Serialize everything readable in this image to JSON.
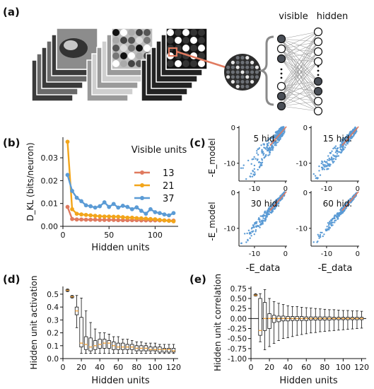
{
  "panels": {
    "a": {
      "label": "(a)",
      "visible_label": "visible",
      "hidden_label": "hidden",
      "visible_states": [
        1,
        1,
        0,
        1,
        0,
        1,
        1,
        0
      ],
      "hidden_states": [
        0,
        0,
        0,
        0,
        0,
        1,
        0,
        1,
        0
      ]
    },
    "b": {
      "label": "(b)"
    },
    "c": {
      "label": "(c)"
    },
    "d": {
      "label": "(d)"
    },
    "e": {
      "label": "(e)"
    }
  },
  "colors": {
    "red": "#e07a5f",
    "orange": "#f2a51a",
    "blue": "#5b9bd5",
    "box_median": "#f2a541",
    "text": "#111111",
    "grid_lines": "#9a9a9a",
    "node_dark": "#4a4f57",
    "node_light": "#ffffff"
  },
  "chart_data": [
    {
      "panel": "b",
      "type": "line",
      "xlabel": "Hidden units",
      "ylabel": "D_KL (bits/neuron)",
      "xlim": [
        0,
        125
      ],
      "ylim": [
        0,
        0.039
      ],
      "xticks": [
        0,
        50,
        100
      ],
      "yticks": [
        0.0,
        0.01,
        0.02,
        0.03
      ],
      "ytick_labels": [
        "0.00",
        "0.01",
        "0.02",
        "0.03"
      ],
      "legend_title": "Visible units",
      "legend_position": "right",
      "x": [
        5,
        10,
        15,
        20,
        25,
        30,
        35,
        40,
        45,
        50,
        55,
        60,
        65,
        70,
        75,
        80,
        85,
        90,
        95,
        100,
        105,
        110,
        115,
        120
      ],
      "series": [
        {
          "name": "13",
          "color": "#e07a5f",
          "values": [
            0.0085,
            0.0032,
            0.003,
            0.003,
            0.0029,
            0.0029,
            0.0029,
            0.0028,
            0.0028,
            0.0028,
            0.0028,
            0.0027,
            0.0027,
            0.0027,
            0.0027,
            0.0027,
            0.0026,
            0.0026,
            0.0026,
            0.0026,
            0.0026,
            0.0026,
            0.0025,
            0.0025
          ]
        },
        {
          "name": "21",
          "color": "#f2a51a",
          "values": [
            0.037,
            0.0075,
            0.0055,
            0.0052,
            0.005,
            0.0048,
            0.0046,
            0.0044,
            0.0043,
            0.0043,
            0.0042,
            0.0042,
            0.004,
            0.0038,
            0.0038,
            0.0036,
            0.0035,
            0.0034,
            0.0032,
            0.0031,
            0.0028,
            0.0026,
            0.0024,
            0.0022
          ]
        },
        {
          "name": "37",
          "color": "#5b9bd5",
          "values": [
            0.0225,
            0.0155,
            0.0125,
            0.011,
            0.0092,
            0.0088,
            0.0082,
            0.0088,
            0.0105,
            0.0085,
            0.0098,
            0.0082,
            0.009,
            0.0085,
            0.0075,
            0.0083,
            0.0068,
            0.0055,
            0.0075,
            0.0062,
            0.0058,
            0.0052,
            0.0048,
            0.0058
          ]
        }
      ]
    },
    {
      "panel": "c",
      "type": "scatter",
      "xlabel": "-E_data",
      "ylabel": "-E_model",
      "xlim": [
        -15,
        0.5
      ],
      "ylim": [
        -15,
        0.5
      ],
      "xticks": [
        -10,
        0
      ],
      "yticks": [
        -10,
        0
      ],
      "point_color": "#5b9bd5",
      "diagonal_color": "#e07a5f",
      "subplots": [
        {
          "title": "5 hid.",
          "spread": 1.1
        },
        {
          "title": "15 hid.",
          "spread": 0.75
        },
        {
          "title": "30 hid.",
          "spread": 0.55
        },
        {
          "title": "60 hid.",
          "spread": 0.4
        }
      ]
    },
    {
      "panel": "d",
      "type": "box",
      "xlabel": "Hidden units",
      "ylabel": "Hidden unit activation",
      "xlim": [
        0,
        125
      ],
      "ylim": [
        0,
        0.56
      ],
      "xticks": [
        0,
        20,
        40,
        60,
        80,
        100,
        120
      ],
      "yticks": [
        0.0,
        0.1,
        0.2,
        0.3,
        0.4,
        0.5
      ],
      "ytick_labels": [
        "0.0",
        "0.1",
        "0.2",
        "0.3",
        "0.4",
        "0.5"
      ],
      "boxes": [
        {
          "x": 5,
          "wlo": 0.52,
          "q1": 0.525,
          "med": 0.53,
          "q3": 0.535,
          "whi": 0.54
        },
        {
          "x": 10,
          "wlo": 0.47,
          "q1": 0.475,
          "med": 0.48,
          "q3": 0.485,
          "whi": 0.49
        },
        {
          "x": 15,
          "wlo": 0.24,
          "q1": 0.34,
          "med": 0.37,
          "q3": 0.4,
          "whi": 0.49
        },
        {
          "x": 20,
          "wlo": 0.04,
          "q1": 0.09,
          "med": 0.12,
          "q3": 0.32,
          "whi": 0.47
        },
        {
          "x": 25,
          "wlo": 0.04,
          "q1": 0.07,
          "med": 0.11,
          "q3": 0.17,
          "whi": 0.37
        },
        {
          "x": 30,
          "wlo": 0.04,
          "q1": 0.06,
          "med": 0.09,
          "q3": 0.16,
          "whi": 0.28
        },
        {
          "x": 35,
          "wlo": 0.04,
          "q1": 0.07,
          "med": 0.1,
          "q3": 0.14,
          "whi": 0.23
        },
        {
          "x": 40,
          "wlo": 0.04,
          "q1": 0.08,
          "med": 0.11,
          "q3": 0.15,
          "whi": 0.2
        },
        {
          "x": 45,
          "wlo": 0.04,
          "q1": 0.08,
          "med": 0.12,
          "q3": 0.15,
          "whi": 0.2
        },
        {
          "x": 50,
          "wlo": 0.04,
          "q1": 0.08,
          "med": 0.12,
          "q3": 0.14,
          "whi": 0.19
        },
        {
          "x": 55,
          "wlo": 0.04,
          "q1": 0.07,
          "med": 0.1,
          "q3": 0.13,
          "whi": 0.17
        },
        {
          "x": 60,
          "wlo": 0.04,
          "q1": 0.07,
          "med": 0.09,
          "q3": 0.12,
          "whi": 0.17
        },
        {
          "x": 65,
          "wlo": 0.04,
          "q1": 0.07,
          "med": 0.09,
          "q3": 0.12,
          "whi": 0.15
        },
        {
          "x": 70,
          "wlo": 0.04,
          "q1": 0.07,
          "med": 0.09,
          "q3": 0.11,
          "whi": 0.15
        },
        {
          "x": 75,
          "wlo": 0.04,
          "q1": 0.07,
          "med": 0.09,
          "q3": 0.11,
          "whi": 0.14
        },
        {
          "x": 80,
          "wlo": 0.04,
          "q1": 0.06,
          "med": 0.08,
          "q3": 0.1,
          "whi": 0.13
        },
        {
          "x": 85,
          "wlo": 0.04,
          "q1": 0.06,
          "med": 0.08,
          "q3": 0.1,
          "whi": 0.13
        },
        {
          "x": 90,
          "wlo": 0.04,
          "q1": 0.06,
          "med": 0.08,
          "q3": 0.1,
          "whi": 0.12
        },
        {
          "x": 95,
          "wlo": 0.04,
          "q1": 0.06,
          "med": 0.07,
          "q3": 0.09,
          "whi": 0.12
        },
        {
          "x": 100,
          "wlo": 0.04,
          "q1": 0.06,
          "med": 0.07,
          "q3": 0.09,
          "whi": 0.12
        },
        {
          "x": 105,
          "wlo": 0.04,
          "q1": 0.05,
          "med": 0.07,
          "q3": 0.09,
          "whi": 0.11
        },
        {
          "x": 110,
          "wlo": 0.04,
          "q1": 0.05,
          "med": 0.07,
          "q3": 0.08,
          "whi": 0.11
        },
        {
          "x": 115,
          "wlo": 0.04,
          "q1": 0.05,
          "med": 0.07,
          "q3": 0.08,
          "whi": 0.11
        },
        {
          "x": 120,
          "wlo": 0.04,
          "q1": 0.05,
          "med": 0.06,
          "q3": 0.08,
          "whi": 0.11
        }
      ]
    },
    {
      "panel": "e",
      "type": "box",
      "xlabel": "Hidden units",
      "ylabel": "Hidden unit correlation",
      "xlim": [
        0,
        125
      ],
      "ylim": [
        -1.0,
        0.8
      ],
      "xticks": [
        0,
        20,
        40,
        60,
        80,
        100,
        120
      ],
      "yticks": [
        -1.0,
        -0.75,
        -0.5,
        -0.25,
        0.0,
        0.25,
        0.5,
        0.75
      ],
      "ytick_labels": [
        "-1.00",
        "-0.75",
        "-0.50",
        "-0.25",
        "0.00",
        "0.25",
        "0.50",
        "0.75"
      ],
      "boxes": [
        {
          "x": 5,
          "wlo": 0.56,
          "q1": 0.57,
          "med": 0.58,
          "q3": 0.6,
          "whi": 0.62
        },
        {
          "x": 10,
          "wlo": -0.58,
          "q1": -0.42,
          "med": -0.3,
          "q3": 0.5,
          "whi": 0.62
        },
        {
          "x": 15,
          "wlo": -0.78,
          "q1": -0.3,
          "med": 0.0,
          "q3": 0.4,
          "whi": 0.72
        },
        {
          "x": 20,
          "wlo": -0.7,
          "q1": -0.25,
          "med": 0.0,
          "q3": 0.12,
          "whi": 0.5
        },
        {
          "x": 25,
          "wlo": -0.62,
          "q1": -0.1,
          "med": 0.0,
          "q3": 0.08,
          "whi": 0.42
        },
        {
          "x": 30,
          "wlo": -0.55,
          "q1": -0.08,
          "med": 0.0,
          "q3": 0.06,
          "whi": 0.38
        },
        {
          "x": 35,
          "wlo": -0.5,
          "q1": -0.06,
          "med": 0.0,
          "q3": 0.06,
          "whi": 0.35
        },
        {
          "x": 40,
          "wlo": -0.48,
          "q1": -0.06,
          "med": 0.0,
          "q3": 0.05,
          "whi": 0.32
        },
        {
          "x": 45,
          "wlo": -0.45,
          "q1": -0.05,
          "med": 0.0,
          "q3": 0.05,
          "whi": 0.3
        },
        {
          "x": 50,
          "wlo": -0.42,
          "q1": -0.05,
          "med": 0.0,
          "q3": 0.05,
          "whi": 0.3
        },
        {
          "x": 55,
          "wlo": -0.4,
          "q1": -0.05,
          "med": 0.0,
          "q3": 0.05,
          "whi": 0.28
        },
        {
          "x": 60,
          "wlo": -0.38,
          "q1": -0.05,
          "med": 0.0,
          "q3": 0.04,
          "whi": 0.27
        },
        {
          "x": 65,
          "wlo": -0.36,
          "q1": -0.04,
          "med": 0.0,
          "q3": 0.04,
          "whi": 0.26
        },
        {
          "x": 70,
          "wlo": -0.35,
          "q1": -0.04,
          "med": 0.0,
          "q3": 0.04,
          "whi": 0.25
        },
        {
          "x": 75,
          "wlo": -0.33,
          "q1": -0.04,
          "med": 0.0,
          "q3": 0.04,
          "whi": 0.24
        },
        {
          "x": 80,
          "wlo": -0.32,
          "q1": -0.04,
          "med": 0.0,
          "q3": 0.04,
          "whi": 0.23
        },
        {
          "x": 85,
          "wlo": -0.31,
          "q1": -0.04,
          "med": 0.0,
          "q3": 0.04,
          "whi": 0.22
        },
        {
          "x": 90,
          "wlo": -0.3,
          "q1": -0.03,
          "med": 0.0,
          "q3": 0.03,
          "whi": 0.22
        },
        {
          "x": 95,
          "wlo": -0.29,
          "q1": -0.03,
          "med": 0.0,
          "q3": 0.03,
          "whi": 0.21
        },
        {
          "x": 100,
          "wlo": -0.28,
          "q1": -0.03,
          "med": 0.0,
          "q3": 0.03,
          "whi": 0.2
        },
        {
          "x": 105,
          "wlo": -0.27,
          "q1": -0.03,
          "med": 0.0,
          "q3": 0.03,
          "whi": 0.2
        },
        {
          "x": 110,
          "wlo": -0.26,
          "q1": -0.03,
          "med": 0.0,
          "q3": 0.03,
          "whi": 0.19
        },
        {
          "x": 115,
          "wlo": -0.25,
          "q1": -0.03,
          "med": 0.0,
          "q3": 0.03,
          "whi": 0.19
        },
        {
          "x": 120,
          "wlo": -0.24,
          "q1": -0.03,
          "med": 0.0,
          "q3": 0.03,
          "whi": 0.18
        }
      ]
    }
  ]
}
